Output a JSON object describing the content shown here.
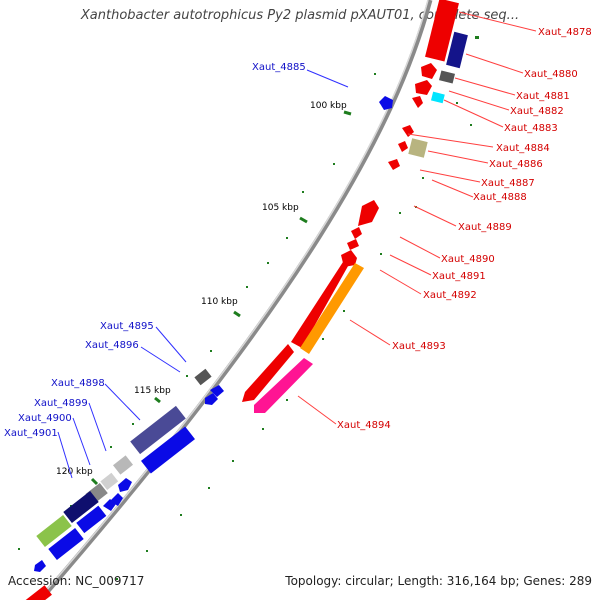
{
  "title": "Xanthobacter autotrophicus Py2 plasmid pXAUT01, complete seq...",
  "footer": {
    "accession": "Accession: NC_009717",
    "topology": "Topology: circular; Length: 316,164 bp; Genes: 289"
  },
  "ticks": [
    "100 kbp",
    "105 kbp",
    "110 kbp",
    "115 kbp",
    "120 kbp"
  ],
  "labels_forward": [
    "Xaut_4878",
    "Xaut_4880",
    "Xaut_4881",
    "Xaut_4882",
    "Xaut_4883",
    "Xaut_4884",
    "Xaut_4886",
    "Xaut_4887",
    "Xaut_4888",
    "Xaut_4889",
    "Xaut_4890",
    "Xaut_4891",
    "Xaut_4892",
    "Xaut_4893",
    "Xaut_4894"
  ],
  "labels_reverse": [
    "Xaut_4885",
    "Xaut_4895",
    "Xaut_4896",
    "Xaut_4898",
    "Xaut_4899",
    "Xaut_4900",
    "Xaut_4901"
  ],
  "colors": {
    "forward_label": "#d40000",
    "reverse_label": "#1010c8",
    "forward_gene": "#ee0000",
    "reverse_gene": "#0a0ae6",
    "backbone": "#8a8a8a",
    "tick": "#1e7d1e"
  }
}
